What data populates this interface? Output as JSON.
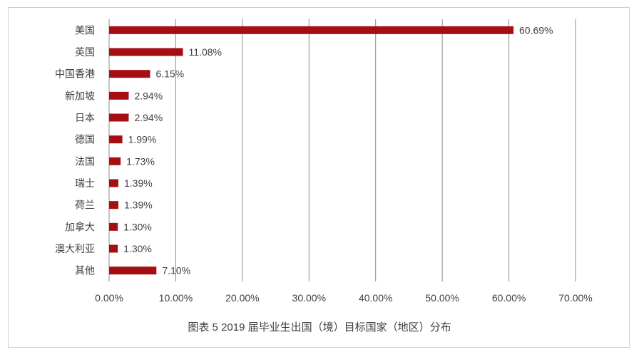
{
  "chart_data": {
    "type": "bar",
    "orientation": "horizontal",
    "categories": [
      "美国",
      "英国",
      "中国香港",
      "新加坡",
      "日本",
      "德国",
      "法国",
      "瑞士",
      "荷兰",
      "加拿大",
      "澳大利亚",
      "其他"
    ],
    "values": [
      60.69,
      11.08,
      6.15,
      2.94,
      2.94,
      1.99,
      1.73,
      1.39,
      1.39,
      1.3,
      1.3,
      7.1
    ],
    "value_labels": [
      "60.69%",
      "11.08%",
      "6.15%",
      "2.94%",
      "2.94%",
      "1.99%",
      "1.73%",
      "1.39%",
      "1.39%",
      "1.30%",
      "1.30%",
      "7.10%"
    ],
    "x_ticks": [
      "0.00%",
      "10.00%",
      "20.00%",
      "30.00%",
      "40.00%",
      "50.00%",
      "60.00%",
      "70.00%"
    ],
    "xlim": [
      0,
      70
    ],
    "grid": true,
    "bar_color": "#a50f13",
    "grid_color": "#8c8c8c",
    "caption": "图表 5  2019 届毕业生出国（境）目标国家（地区）分布"
  }
}
